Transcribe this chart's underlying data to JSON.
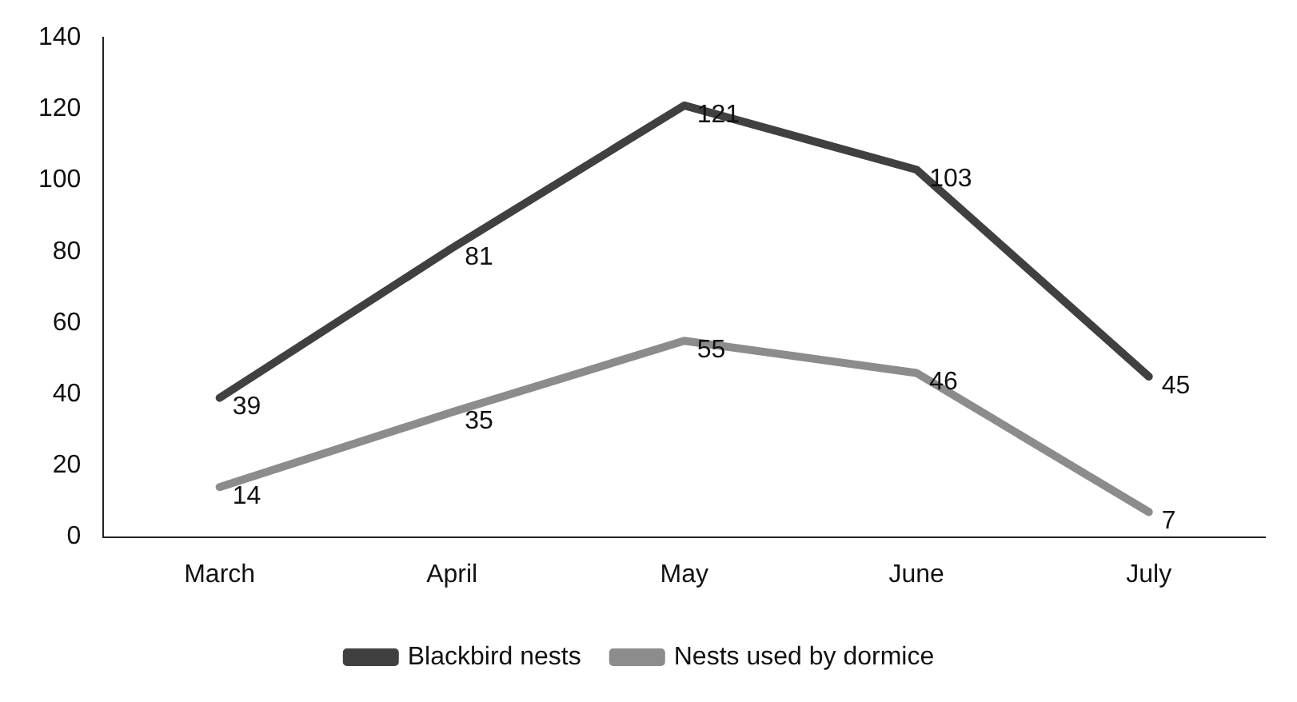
{
  "chart_data": {
    "type": "line",
    "categories": [
      "March",
      "April",
      "May",
      "June",
      "July"
    ],
    "series": [
      {
        "name": "Blackbird nests",
        "color": "#404040",
        "values": [
          39,
          81,
          121,
          103,
          45
        ]
      },
      {
        "name": "Nests used by dormice",
        "color": "#8c8c8c",
        "values": [
          14,
          35,
          55,
          46,
          7
        ]
      }
    ],
    "ylim": [
      0,
      140
    ],
    "yticks": [
      0,
      20,
      40,
      60,
      80,
      100,
      120,
      140
    ],
    "grid": false,
    "legend": "bottom",
    "marker": "none",
    "line_style": "solid",
    "data_labels": true
  }
}
